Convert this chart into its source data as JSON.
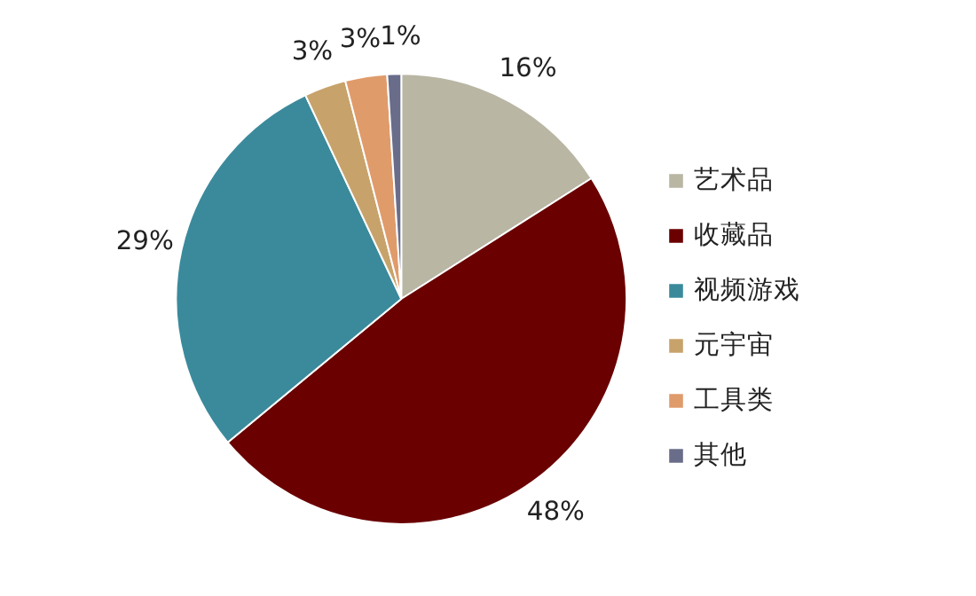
{
  "chart_data": {
    "type": "pie",
    "categories": [
      "艺术品",
      "收藏品",
      "视频游戏",
      "元宇宙",
      "工具类",
      "其他"
    ],
    "values": [
      16,
      48,
      29,
      3,
      3,
      1
    ],
    "colors": [
      "#b9b6a4",
      "#6a0000",
      "#3b8a9c",
      "#c7a36b",
      "#e09b6b",
      "#696d8a"
    ],
    "value_labels": [
      "16%",
      "48%",
      "29%",
      "3%",
      "3%",
      "1%"
    ],
    "legend": "right"
  }
}
